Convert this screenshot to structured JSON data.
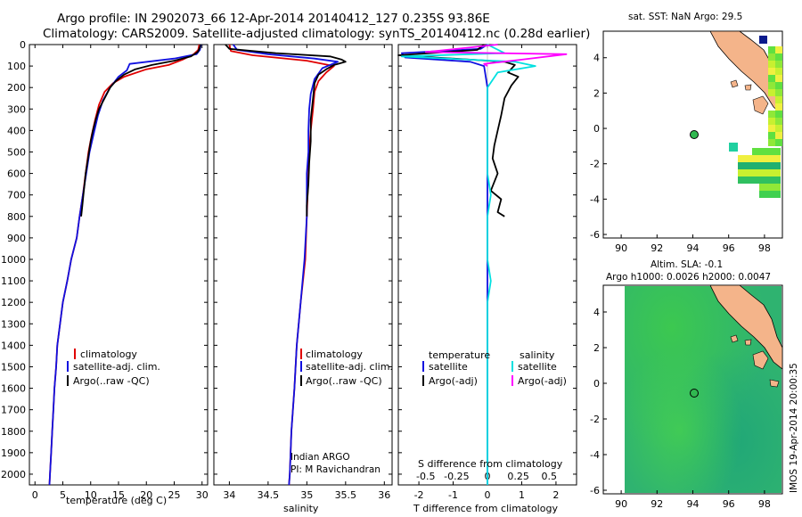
{
  "header": {
    "line1": "Argo profile: IN 2902073_66 12-Apr-2014 20140412_127 0.235S 93.86E",
    "line2": "Climatology: CARS2009. Satellite-adjusted climatology: synTS_20140412.nc (0.28d earlier)"
  },
  "colors": {
    "climatology": "#e00000",
    "satellite": "#1010e0",
    "argo": "#000000",
    "salinity_sat": "#00e0e0",
    "salinity_argo": "#ff00ff",
    "land": "#f4b48a",
    "ocean_bg": "#30b860"
  },
  "chart_data": [
    {
      "type": "line",
      "id": "temperature-profile",
      "xlabel": "temperature (deg C)",
      "ylabel": "",
      "xlim": [
        -1,
        31
      ],
      "ylim": [
        2050,
        0
      ],
      "xticks": [
        "0",
        "5",
        "10",
        "15",
        "20",
        "25",
        "30"
      ],
      "yticks": [
        "0",
        "100",
        "200",
        "300",
        "400",
        "500",
        "600",
        "700",
        "800",
        "900",
        "1000",
        "1100",
        "1200",
        "1300",
        "1400",
        "1500",
        "1600",
        "1700",
        "1800",
        "1900",
        "2000"
      ],
      "legend": [
        "climatology",
        "satellite-adj. clim.",
        "Argo(..raw -QC)"
      ],
      "series": [
        {
          "name": "climatology",
          "color": "red",
          "points": [
            [
              29.5,
              0
            ],
            [
              29.3,
              25
            ],
            [
              28.5,
              45
            ],
            [
              26.5,
              70
            ],
            [
              24,
              95
            ],
            [
              20,
              115
            ],
            [
              16,
              150
            ],
            [
              14,
              180
            ],
            [
              12.5,
              220
            ],
            [
              11.5,
              280
            ],
            [
              10.8,
              350
            ],
            [
              10.2,
              420
            ],
            [
              9.6,
              500
            ],
            [
              9.1,
              600
            ],
            [
              8.6,
              700
            ],
            [
              8,
              800
            ],
            [
              7.5,
              900
            ],
            [
              6.5,
              1000
            ],
            [
              5.8,
              1100
            ],
            [
              5,
              1200
            ],
            [
              4.5,
              1300
            ],
            [
              4,
              1400
            ],
            [
              3.8,
              1500
            ],
            [
              3.5,
              1600
            ],
            [
              3.3,
              1700
            ],
            [
              3.1,
              1800
            ],
            [
              2.9,
              1900
            ],
            [
              2.7,
              2000
            ],
            [
              2.6,
              2050
            ]
          ]
        },
        {
          "name": "satellite-adj. clim.",
          "color": "blue",
          "points": [
            [
              29.8,
              0
            ],
            [
              29.6,
              25
            ],
            [
              29,
              45
            ],
            [
              25,
              65
            ],
            [
              17,
              90
            ],
            [
              16.5,
              120
            ],
            [
              15,
              150
            ],
            [
              13.5,
              200
            ],
            [
              12.2,
              260
            ],
            [
              11.3,
              330
            ],
            [
              10.5,
              420
            ],
            [
              9.8,
              500
            ],
            [
              9.2,
              600
            ],
            [
              8.6,
              700
            ],
            [
              8,
              800
            ],
            [
              7.5,
              900
            ],
            [
              6.5,
              1000
            ],
            [
              5.8,
              1100
            ],
            [
              5,
              1200
            ],
            [
              4.5,
              1300
            ],
            [
              4,
              1400
            ],
            [
              3.8,
              1500
            ],
            [
              3.5,
              1600
            ],
            [
              3.3,
              1700
            ],
            [
              3.1,
              1800
            ],
            [
              2.9,
              1900
            ],
            [
              2.7,
              2000
            ],
            [
              2.6,
              2050
            ]
          ]
        },
        {
          "name": "Argo(..raw -QC)",
          "color": "black",
          "points": [
            [
              29.7,
              0
            ],
            [
              29.6,
              15
            ],
            [
              29.2,
              35
            ],
            [
              28,
              55
            ],
            [
              25,
              75
            ],
            [
              21,
              95
            ],
            [
              18,
              115
            ],
            [
              16,
              140
            ],
            [
              14.5,
              170
            ],
            [
              13.5,
              200
            ],
            [
              12.5,
              250
            ],
            [
              11.5,
              300
            ],
            [
              10.9,
              350
            ],
            [
              10.4,
              400
            ],
            [
              10,
              450
            ],
            [
              9.7,
              500
            ],
            [
              9.4,
              550
            ],
            [
              9.1,
              600
            ],
            [
              8.9,
              650
            ],
            [
              8.7,
              700
            ],
            [
              8.5,
              750
            ],
            [
              8.3,
              800
            ]
          ]
        }
      ]
    },
    {
      "type": "line",
      "id": "salinity-profile",
      "xlabel": "salinity",
      "xlim": [
        33.8,
        36.1
      ],
      "ylim": [
        2050,
        0
      ],
      "xticks": [
        "34",
        "34.5",
        "35",
        "35.5",
        "36"
      ],
      "legend": [
        "climatology",
        "satellite-adj. clim.",
        "Argo(..raw -QC)"
      ],
      "annotation": [
        "Indian ARGO",
        "PI: M Ravichandran"
      ],
      "series": [
        {
          "name": "climatology",
          "color": "red",
          "points": [
            [
              34.0,
              0
            ],
            [
              34.02,
              30
            ],
            [
              34.3,
              50
            ],
            [
              35.0,
              75
            ],
            [
              35.35,
              100
            ],
            [
              35.25,
              130
            ],
            [
              35.15,
              170
            ],
            [
              35.1,
              220
            ],
            [
              35.08,
              300
            ],
            [
              35.05,
              400
            ],
            [
              35.03,
              500
            ],
            [
              35.02,
              600
            ],
            [
              35.0,
              800
            ],
            [
              34.98,
              1000
            ],
            [
              34.92,
              1200
            ],
            [
              34.87,
              1400
            ],
            [
              34.84,
              1600
            ],
            [
              34.8,
              1800
            ],
            [
              34.78,
              2000
            ],
            [
              34.77,
              2050
            ]
          ]
        },
        {
          "name": "satellite-adj. clim.",
          "color": "blue",
          "points": [
            [
              34.05,
              0
            ],
            [
              34.1,
              25
            ],
            [
              34.5,
              45
            ],
            [
              35.1,
              65
            ],
            [
              35.4,
              80
            ],
            [
              35.2,
              110
            ],
            [
              35.1,
              160
            ],
            [
              35.05,
              230
            ],
            [
              35.03,
              300
            ],
            [
              35.02,
              400
            ],
            [
              35.02,
              500
            ],
            [
              35.0,
              600
            ],
            [
              35.0,
              800
            ],
            [
              34.97,
              1000
            ],
            [
              34.92,
              1200
            ],
            [
              34.87,
              1400
            ],
            [
              34.84,
              1600
            ],
            [
              34.8,
              1800
            ],
            [
              34.78,
              2000
            ],
            [
              34.77,
              2050
            ]
          ]
        },
        {
          "name": "Argo(..raw -QC)",
          "color": "black",
          "points": [
            [
              33.95,
              0
            ],
            [
              34.0,
              20
            ],
            [
              34.6,
              40
            ],
            [
              35.3,
              55
            ],
            [
              35.45,
              70
            ],
            [
              35.5,
              80
            ],
            [
              35.35,
              95
            ],
            [
              35.25,
              115
            ],
            [
              35.15,
              140
            ],
            [
              35.1,
              180
            ],
            [
              35.08,
              250
            ],
            [
              35.05,
              350
            ],
            [
              35.05,
              450
            ],
            [
              35.03,
              550
            ],
            [
              35.02,
              650
            ],
            [
              35.0,
              750
            ],
            [
              35.0,
              800
            ]
          ]
        }
      ]
    },
    {
      "type": "line",
      "id": "difference-profile",
      "xlabel": "T difference from climatology",
      "x2label": "S difference from climatology",
      "xlim": [
        -2.6,
        2.6
      ],
      "ylim": [
        2050,
        0
      ],
      "xticks": [
        "-2",
        "-1",
        "0",
        "1",
        "2"
      ],
      "x2ticks": [
        "-0.5",
        "-0.25",
        "0",
        "0.25",
        "0.5"
      ],
      "legend_left_title": "temperature",
      "legend_right_title": "salinity",
      "legend": [
        "satellite",
        "Argo(-adj)",
        "satellite",
        "Argo(-adj)"
      ],
      "series": [
        {
          "name": "T satellite",
          "color": "blue",
          "points": [
            [
              0,
              0
            ],
            [
              -0.2,
              20
            ],
            [
              -2.5,
              40
            ],
            [
              -2.4,
              60
            ],
            [
              -0.5,
              80
            ],
            [
              -0.1,
              100
            ],
            [
              0,
              200
            ],
            [
              0,
              500
            ],
            [
              0,
              800
            ],
            [
              0,
              1000
            ],
            [
              0,
              1400
            ],
            [
              0,
              1800
            ],
            [
              0,
              2050
            ]
          ]
        },
        {
          "name": "T Argo(-adj)",
          "color": "black",
          "points": [
            [
              -0.1,
              0
            ],
            [
              -0.3,
              25
            ],
            [
              -2.6,
              50
            ],
            [
              -0.5,
              70
            ],
            [
              0.5,
              80
            ],
            [
              0.8,
              95
            ],
            [
              0.6,
              130
            ],
            [
              0.9,
              150
            ],
            [
              0.7,
              190
            ],
            [
              0.5,
              250
            ],
            [
              0.4,
              330
            ],
            [
              0.3,
              400
            ],
            [
              0.2,
              470
            ],
            [
              0.15,
              530
            ],
            [
              0.3,
              600
            ],
            [
              0.1,
              680
            ],
            [
              0.4,
              720
            ],
            [
              0.3,
              780
            ],
            [
              0.5,
              800
            ]
          ]
        },
        {
          "name": "S satellite",
          "color": "cyan",
          "points": [
            [
              0,
              0
            ],
            [
              0.5,
              40
            ],
            [
              -2.5,
              55
            ],
            [
              0.8,
              80
            ],
            [
              1.4,
              100
            ],
            [
              0.3,
              130
            ],
            [
              0,
              200
            ],
            [
              0,
              400
            ],
            [
              0,
              600
            ],
            [
              0.1,
              700
            ],
            [
              0,
              800
            ],
            [
              0,
              1000
            ],
            [
              0.1,
              1100
            ],
            [
              0,
              1200
            ],
            [
              0,
              1600
            ],
            [
              0,
              2050
            ]
          ]
        },
        {
          "name": "S Argo(-adj)",
          "color": "magenta",
          "points": [
            [
              0.3,
              0
            ],
            [
              -1.8,
              35
            ],
            [
              2.3,
              45
            ],
            [
              1.0,
              70
            ],
            [
              -0.1,
              90
            ],
            [
              0,
              100
            ]
          ]
        }
      ]
    },
    {
      "type": "heatmap",
      "id": "sst-map",
      "title": "sat. SST: NaN Argo: 29.5",
      "xlim": [
        89,
        99
      ],
      "ylim": [
        -6.2,
        5.5
      ],
      "xticks": [
        "90",
        "92",
        "94",
        "96",
        "98"
      ],
      "yticks": [
        "4",
        "2",
        "0",
        "-2",
        "-4",
        "-6"
      ],
      "argo_position": {
        "lon": 93.86,
        "lat": -0.235
      }
    },
    {
      "type": "heatmap",
      "id": "sla-map",
      "title": "Altim. SLA: -0.1",
      "subtitle": "Argo h1000: 0.0026 h2000: 0.0047",
      "xlim": [
        89,
        99
      ],
      "ylim": [
        -6.2,
        5.5
      ],
      "xticks": [
        "90",
        "92",
        "94",
        "96",
        "98"
      ],
      "yticks": [
        "4",
        "2",
        "0",
        "-2",
        "-4",
        "-6"
      ],
      "argo_position": {
        "lon": 93.86,
        "lat": -0.235
      }
    }
  ],
  "footer": {
    "stamp": "IMOS 19-Apr-2014 20:00:35"
  }
}
